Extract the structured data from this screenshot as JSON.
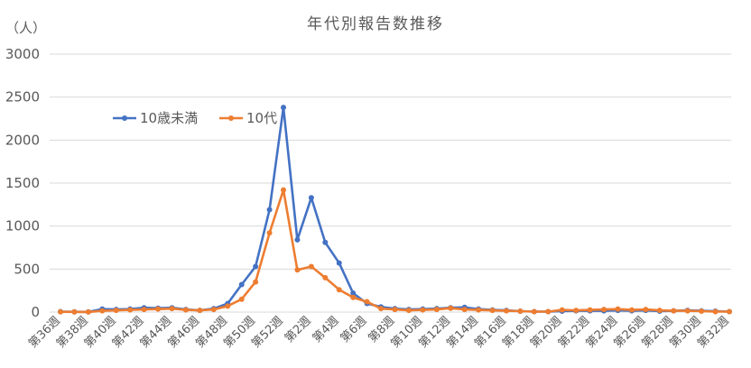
{
  "chart_data": {
    "type": "line",
    "title": "年代別報告数推移",
    "ylabel": "（人）",
    "ylim": [
      0,
      3000
    ],
    "yticks": [
      0,
      500,
      1000,
      1500,
      2000,
      2500,
      3000
    ],
    "grid": true,
    "legend_position": "inside-top-left",
    "x": [
      "第36週",
      "第37週",
      "第38週",
      "第39週",
      "第40週",
      "第41週",
      "第42週",
      "第43週",
      "第44週",
      "第45週",
      "第46週",
      "第47週",
      "第48週",
      "第49週",
      "第50週",
      "第51週",
      "第52週",
      "第1週",
      "第2週",
      "第3週",
      "第4週",
      "第5週",
      "第6週",
      "第7週",
      "第8週",
      "第9週",
      "第10週",
      "第11週",
      "第12週",
      "第13週",
      "第14週",
      "第15週",
      "第16週",
      "第17週",
      "第18週",
      "第19週",
      "第20週",
      "第21週",
      "第22週",
      "第23週",
      "第24週",
      "第25週",
      "第26週",
      "第27週",
      "第28週",
      "第29週",
      "第30週",
      "第31週",
      "第32週"
    ],
    "x_tick_labels": [
      "第36週",
      "第38週",
      "第40週",
      "第42週",
      "第44週",
      "第46週",
      "第48週",
      "第50週",
      "第52週",
      "第2週",
      "第4週",
      "第6週",
      "第8週",
      "第10週",
      "第12週",
      "第14週",
      "第16週",
      "第18週",
      "第20週",
      "第22週",
      "第24週",
      "第26週",
      "第28週",
      "第30週",
      "第32週"
    ],
    "series": [
      {
        "name": "10歳未満",
        "color": "#4472C4",
        "values": [
          5,
          3,
          2,
          35,
          30,
          35,
          50,
          45,
          50,
          30,
          20,
          40,
          100,
          320,
          530,
          1190,
          2380,
          840,
          1330,
          810,
          570,
          220,
          100,
          60,
          40,
          30,
          35,
          40,
          50,
          55,
          35,
          25,
          20,
          10,
          5,
          5,
          10,
          15,
          15,
          15,
          20,
          15,
          20,
          10,
          15,
          20,
          15,
          10,
          5
        ]
      },
      {
        "name": "10代",
        "color": "#ED7D31",
        "values": [
          3,
          2,
          1,
          15,
          20,
          25,
          30,
          35,
          40,
          25,
          20,
          30,
          70,
          150,
          350,
          920,
          1420,
          490,
          530,
          400,
          260,
          170,
          120,
          40,
          30,
          20,
          25,
          30,
          45,
          30,
          25,
          20,
          15,
          10,
          5,
          5,
          25,
          20,
          25,
          30,
          35,
          25,
          30,
          20,
          15,
          15,
          10,
          5,
          5
        ]
      }
    ]
  }
}
